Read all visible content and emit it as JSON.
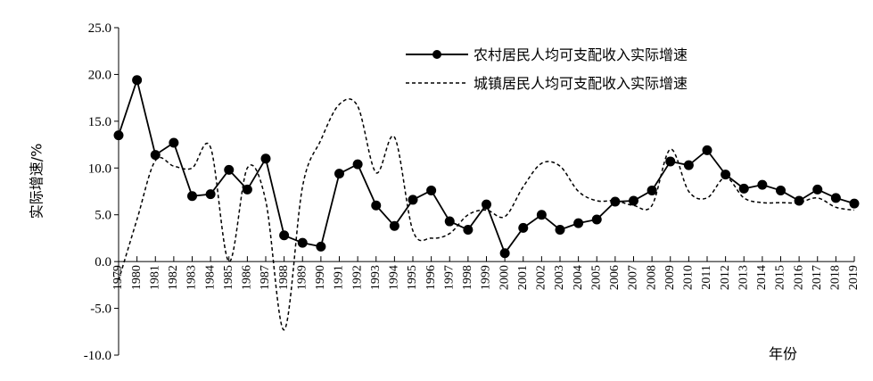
{
  "chart_data": {
    "type": "line",
    "title": "",
    "xlabel": "年份",
    "ylabel": "实际增速/%",
    "ylim": [
      -10,
      25
    ],
    "yticks": [
      "-10.0",
      "-5.0",
      "0.0",
      "5.0",
      "10.0",
      "15.0",
      "20.0",
      "25.0"
    ],
    "grid": false,
    "legend_position": "top-right",
    "categories": [
      "1979",
      "1980",
      "1981",
      "1982",
      "1983",
      "1984",
      "1985",
      "1986",
      "1987",
      "1988",
      "1989",
      "1990",
      "1991",
      "1992",
      "1993",
      "1994",
      "1995",
      "1996",
      "1997",
      "1998",
      "1999",
      "2000",
      "2001",
      "2002",
      "2003",
      "2004",
      "2005",
      "2006",
      "2007",
      "2008",
      "2009",
      "2010",
      "2011",
      "2012",
      "2013",
      "2014",
      "2015",
      "2016",
      "2017",
      "2018",
      "2019"
    ],
    "series": [
      {
        "name": "农村居民人均可支配收入实际增速",
        "style": "solid-with-markers",
        "color": "#000000",
        "values": [
          13.5,
          19.4,
          11.4,
          12.7,
          7.0,
          7.2,
          9.8,
          7.7,
          11.0,
          2.8,
          2.0,
          1.6,
          9.4,
          10.4,
          6.0,
          3.8,
          6.6,
          7.6,
          4.3,
          3.4,
          6.1,
          0.9,
          3.6,
          5.0,
          3.4,
          4.1,
          4.5,
          6.4,
          6.5,
          7.6,
          10.7,
          10.3,
          11.9,
          9.3,
          7.8,
          8.2,
          7.6,
          6.5,
          7.7,
          6.8,
          6.2
        ]
      },
      {
        "name": "城镇居民人均可支配收入实际增速",
        "style": "dashed",
        "color": "#000000",
        "values": [
          -2.0,
          4.5,
          10.8,
          10.2,
          10.0,
          12.2,
          0.0,
          10.0,
          6.5,
          -7.3,
          8.0,
          13.0,
          16.8,
          16.6,
          9.5,
          13.3,
          3.3,
          2.5,
          3.0,
          5.0,
          5.5,
          4.8,
          8.0,
          10.5,
          10.2,
          7.5,
          6.5,
          6.5,
          6.0,
          6.0,
          12.0,
          7.5,
          6.8,
          9.0,
          6.8,
          6.3,
          6.3,
          6.3,
          6.8,
          5.8,
          5.5
        ]
      }
    ]
  }
}
